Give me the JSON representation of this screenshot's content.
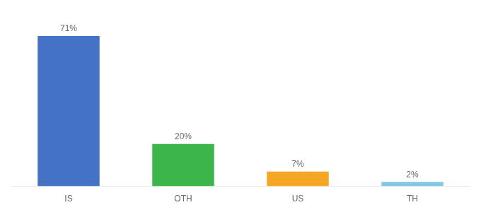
{
  "chart_data": {
    "type": "bar",
    "categories": [
      "IS",
      "OTH",
      "US",
      "TH"
    ],
    "values": [
      71,
      20,
      7,
      2
    ],
    "value_labels": [
      "71%",
      "20%",
      "7%",
      "2%"
    ],
    "colors": [
      "#4472c4",
      "#3cb54a",
      "#f5a623",
      "#7ec8e3"
    ],
    "ylim": [
      0,
      80
    ],
    "grid": false,
    "tick_labels": "x",
    "data_labels": true
  }
}
